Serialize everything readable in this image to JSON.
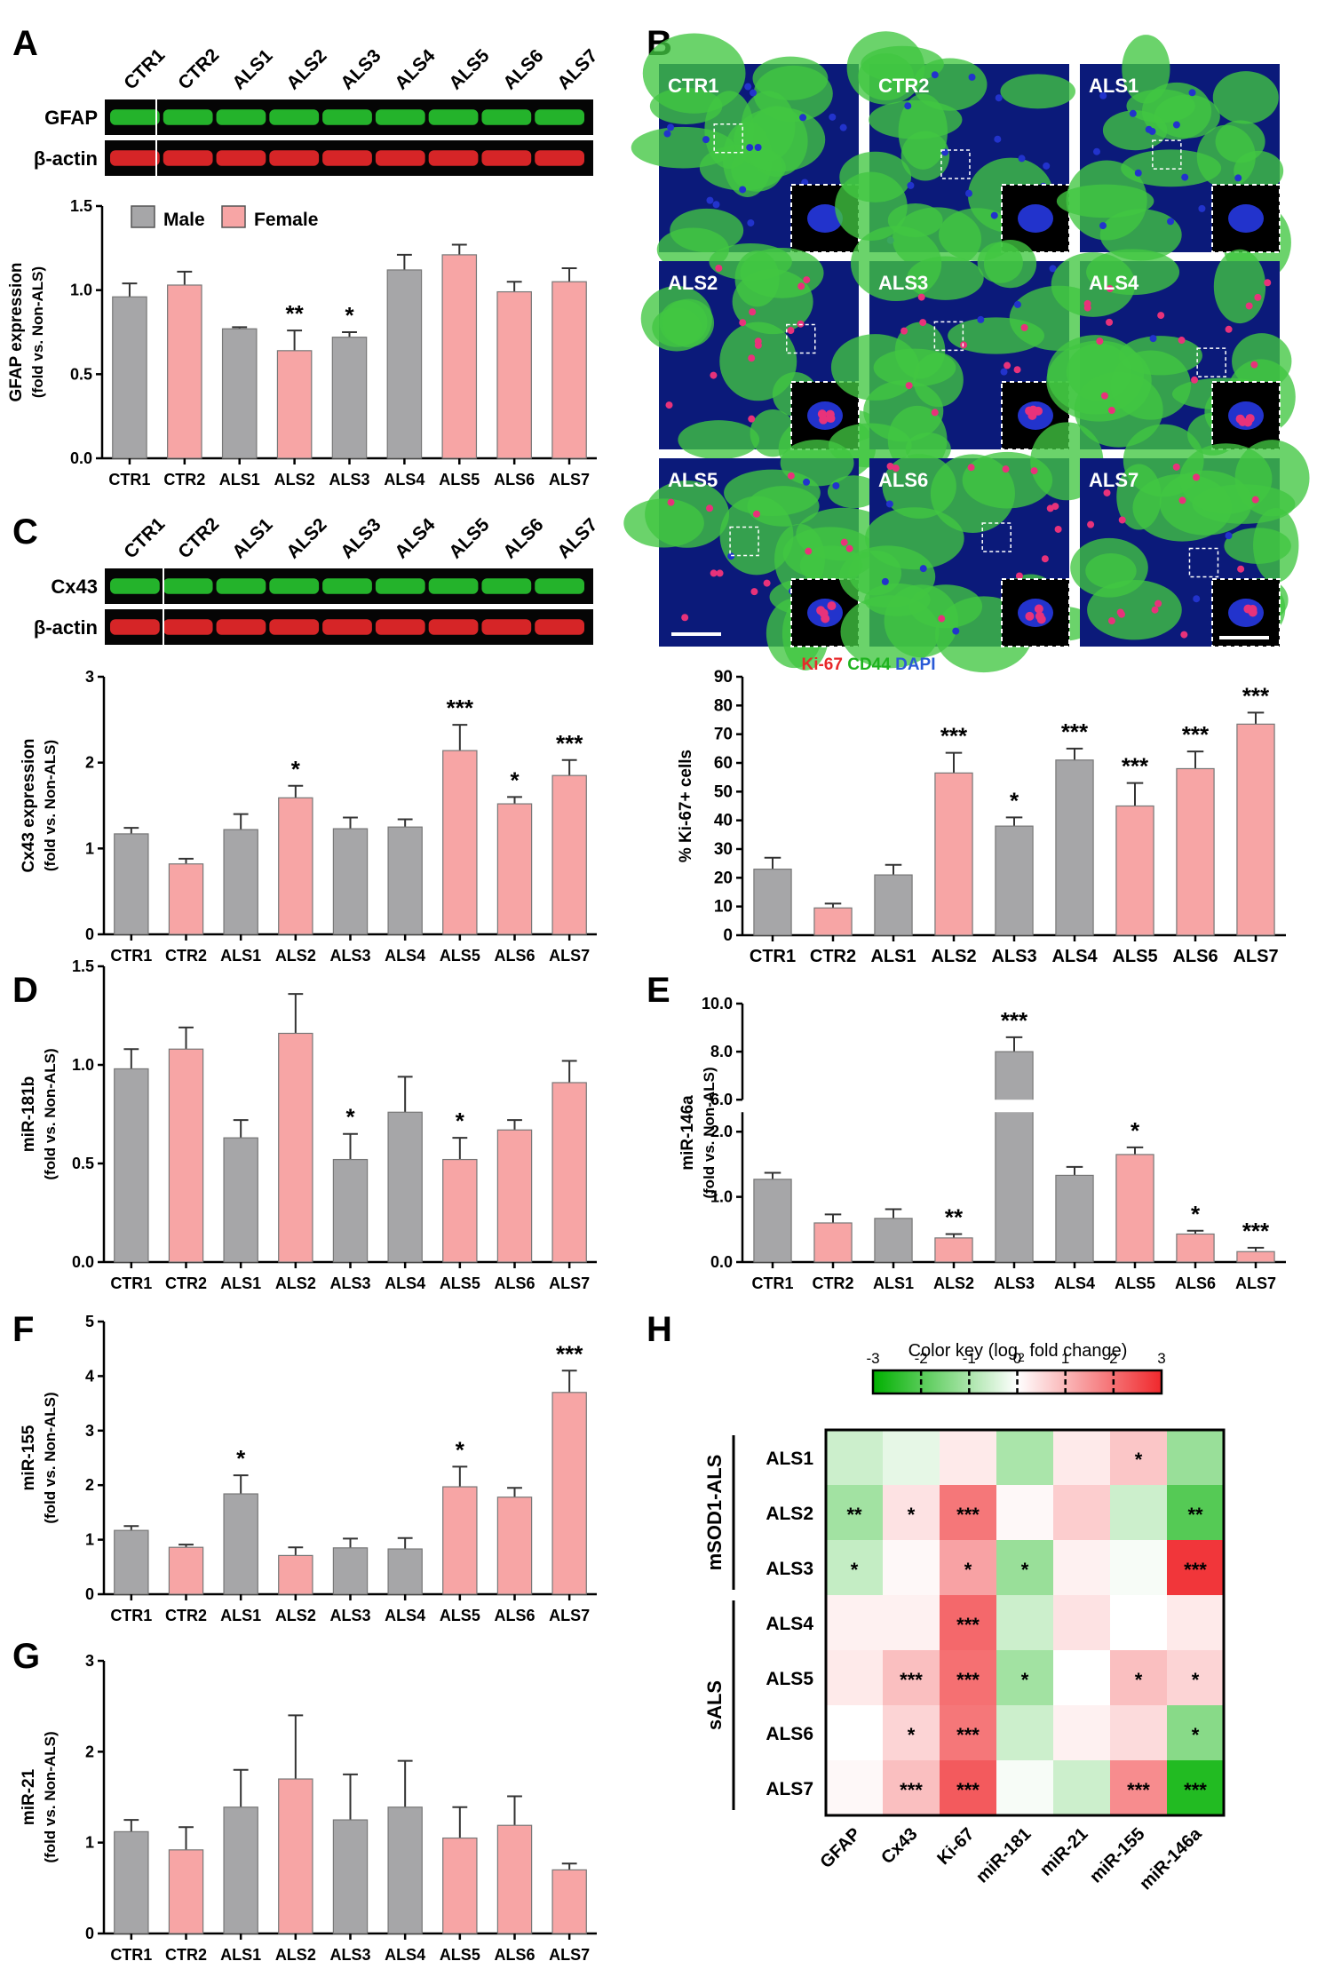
{
  "colors": {
    "male": "#a6a6a8",
    "female": "#f7a5a5",
    "blot_green": "#27c22f",
    "blot_red": "#e8282a",
    "dapi": "#2233cc",
    "ki67": "#e8327a",
    "cd44": "#41c741"
  },
  "samples": [
    "CTR1",
    "CTR2",
    "ALS1",
    "ALS2",
    "ALS3",
    "ALS4",
    "ALS5",
    "ALS6",
    "ALS7"
  ],
  "sex": [
    "male",
    "female",
    "male",
    "female",
    "male",
    "male",
    "female",
    "female",
    "female"
  ],
  "panelA": {
    "letter": "A",
    "blot_rows": [
      "GFAP",
      "β-actin"
    ]
  },
  "panelB": {
    "letter": "B",
    "stain_labels": [
      "Ki-67",
      "CD44",
      "DAPI"
    ]
  },
  "panelC": {
    "letter": "C",
    "blot_rows": [
      "Cx43",
      "β-actin"
    ]
  },
  "panelD": {
    "letter": "D"
  },
  "panelE": {
    "letter": "E"
  },
  "panelF": {
    "letter": "F"
  },
  "panelG": {
    "letter": "G"
  },
  "panelH": {
    "letter": "H"
  },
  "legend": {
    "male": "Male",
    "female": "Female"
  },
  "chart_data": [
    {
      "id": "A",
      "type": "bar",
      "categories": [
        "CTR1",
        "CTR2",
        "ALS1",
        "ALS2",
        "ALS3",
        "ALS4",
        "ALS5",
        "ALS6",
        "ALS7"
      ],
      "values": [
        0.96,
        1.03,
        0.77,
        0.64,
        0.72,
        1.12,
        1.21,
        0.99,
        1.05
      ],
      "errors": [
        0.08,
        0.08,
        0.01,
        0.12,
        0.03,
        0.09,
        0.06,
        0.06,
        0.08
      ],
      "sig": [
        "",
        "",
        "",
        "**",
        "*",
        "",
        "",
        "",
        ""
      ],
      "ylabel": "GFAP expression",
      "ylabel2": "(fold vs. Non-ALS)",
      "ylim": [
        0,
        1.5
      ],
      "ticks": [
        "0.0",
        "0.5",
        "1.0",
        "1.5"
      ]
    },
    {
      "id": "B",
      "type": "bar",
      "categories": [
        "CTR1",
        "CTR2",
        "ALS1",
        "ALS2",
        "ALS3",
        "ALS4",
        "ALS5",
        "ALS6",
        "ALS7"
      ],
      "values": [
        23,
        9.5,
        21,
        56.5,
        38,
        61,
        45,
        58,
        73.5
      ],
      "errors": [
        4,
        1.5,
        3.5,
        7,
        3,
        4,
        8,
        6,
        4
      ],
      "sig": [
        "",
        "",
        "",
        "***",
        "*",
        "***",
        "***",
        "***",
        "***"
      ],
      "ylabel": "% Ki-67+ cells",
      "ylim": [
        0,
        90
      ],
      "ticks": [
        "0",
        "10",
        "20",
        "30",
        "40",
        "50",
        "60",
        "70",
        "80",
        "90"
      ]
    },
    {
      "id": "C",
      "type": "bar",
      "categories": [
        "CTR1",
        "CTR2",
        "ALS1",
        "ALS2",
        "ALS3",
        "ALS4",
        "ALS5",
        "ALS6",
        "ALS7"
      ],
      "values": [
        1.17,
        0.82,
        1.22,
        1.59,
        1.23,
        1.25,
        2.14,
        1.52,
        1.85
      ],
      "errors": [
        0.07,
        0.06,
        0.18,
        0.14,
        0.13,
        0.09,
        0.3,
        0.08,
        0.18
      ],
      "sig": [
        "",
        "",
        "",
        "*",
        "",
        "",
        "***",
        "*",
        "***"
      ],
      "ylabel": "Cx43 expression",
      "ylabel2": "(fold vs. Non-ALS)",
      "ylim": [
        0,
        3
      ],
      "ticks": [
        "0",
        "1",
        "2",
        "3"
      ]
    },
    {
      "id": "D",
      "type": "bar",
      "categories": [
        "CTR1",
        "CTR2",
        "ALS1",
        "ALS2",
        "ALS3",
        "ALS4",
        "ALS5",
        "ALS6",
        "ALS7"
      ],
      "values": [
        0.98,
        1.08,
        0.63,
        1.16,
        0.52,
        0.76,
        0.52,
        0.67,
        0.91
      ],
      "errors": [
        0.1,
        0.11,
        0.09,
        0.2,
        0.13,
        0.18,
        0.11,
        0.05,
        0.11
      ],
      "sig": [
        "",
        "",
        "",
        "",
        "*",
        "",
        "*",
        "",
        ""
      ],
      "ylabel": "miR-181b",
      "ylabel2": "(fold vs. Non-ALS)",
      "ylim": [
        0,
        1.5
      ],
      "ticks": [
        "0.0",
        "0.5",
        "1.0",
        "1.5"
      ]
    },
    {
      "id": "E",
      "type": "bar",
      "categories": [
        "CTR1",
        "CTR2",
        "ALS1",
        "ALS2",
        "ALS3",
        "ALS4",
        "ALS5",
        "ALS6",
        "ALS7"
      ],
      "values": [
        1.27,
        0.6,
        0.67,
        0.37,
        8.0,
        1.33,
        1.65,
        0.43,
        0.16
      ],
      "errors": [
        0.1,
        0.13,
        0.14,
        0.06,
        0.6,
        0.13,
        0.11,
        0.05,
        0.06
      ],
      "sig": [
        "",
        "",
        "",
        "**",
        "***",
        "",
        "*",
        "*",
        "***"
      ],
      "ylabel": "miR-146a",
      "ylabel2": "(fold vs. Non-ALS)",
      "ylim": [
        0,
        10
      ],
      "axis_break": [
        2.3,
        6.0
      ],
      "ticks": [
        "0.0",
        "1.0",
        "2.0",
        "6.0",
        "8.0",
        "10.0"
      ]
    },
    {
      "id": "F",
      "type": "bar",
      "categories": [
        "CTR1",
        "CTR2",
        "ALS1",
        "ALS2",
        "ALS3",
        "ALS4",
        "ALS5",
        "ALS6",
        "ALS7"
      ],
      "values": [
        1.17,
        0.86,
        1.84,
        0.71,
        0.85,
        0.83,
        1.97,
        1.78,
        3.7
      ],
      "errors": [
        0.08,
        0.05,
        0.34,
        0.15,
        0.17,
        0.2,
        0.37,
        0.17,
        0.4
      ],
      "sig": [
        "",
        "",
        "*",
        "",
        "",
        "",
        "*",
        "",
        "***"
      ],
      "ylabel": "miR-155",
      "ylabel2": "(fold vs. Non-ALS)",
      "ylim": [
        0,
        5
      ],
      "ticks": [
        "0",
        "1",
        "2",
        "3",
        "4",
        "5"
      ]
    },
    {
      "id": "G",
      "type": "bar",
      "categories": [
        "CTR1",
        "CTR2",
        "ALS1",
        "ALS2",
        "ALS3",
        "ALS4",
        "ALS5",
        "ALS6",
        "ALS7"
      ],
      "values": [
        1.12,
        0.92,
        1.39,
        1.7,
        1.25,
        1.39,
        1.05,
        1.19,
        0.7
      ],
      "errors": [
        0.13,
        0.25,
        0.41,
        0.7,
        0.5,
        0.51,
        0.34,
        0.32,
        0.07
      ],
      "sig": [
        "",
        "",
        "",
        "",
        "",
        "",
        "",
        "",
        ""
      ],
      "ylabel": "miR-21",
      "ylabel2": "(fold vs. Non-ALS)",
      "ylim": [
        0,
        3
      ],
      "ticks": [
        "0",
        "1",
        "2",
        "3"
      ]
    },
    {
      "id": "H",
      "type": "heatmap",
      "title": "Color key (log",
      "title_sub": "2",
      "title_end": " fold change)",
      "key_ticks": [
        "-3",
        "-2",
        "-1",
        "0",
        "1",
        "2",
        "3"
      ],
      "rows": [
        "ALS1",
        "ALS2",
        "ALS3",
        "ALS4",
        "ALS5",
        "ALS6",
        "ALS7"
      ],
      "cols": [
        "GFAP",
        "Cx43",
        "Ki-67",
        "miR-181",
        "miR-21",
        "miR-155",
        "miR-146a"
      ],
      "groups": [
        {
          "label": "mSOD1-ALS",
          "rows": [
            0,
            2
          ]
        },
        {
          "label": "sALS",
          "rows": [
            3,
            6
          ]
        }
      ],
      "values": [
        [
          -0.6,
          -0.3,
          0.3,
          -1.0,
          0.3,
          0.8,
          -1.2
        ],
        [
          -1.1,
          0.4,
          1.9,
          0.1,
          0.7,
          -0.6,
          -2.0
        ],
        [
          -0.7,
          0.1,
          1.3,
          -1.2,
          0.2,
          -0.1,
          2.8
        ],
        [
          0.2,
          0.2,
          2.1,
          -0.6,
          0.4,
          0.0,
          0.3
        ],
        [
          0.3,
          0.9,
          2.0,
          -1.1,
          0.0,
          0.9,
          0.6
        ],
        [
          0.0,
          0.6,
          1.9,
          -0.6,
          0.2,
          0.5,
          -1.4
        ],
        [
          0.1,
          0.9,
          2.3,
          -0.1,
          -0.6,
          1.6,
          -2.6
        ]
      ],
      "sig": [
        [
          "",
          "",
          "",
          "",
          "",
          "*",
          ""
        ],
        [
          "**",
          "*",
          "***",
          "",
          "",
          "",
          "**"
        ],
        [
          "*",
          "",
          "*",
          "*",
          "",
          "",
          "***"
        ],
        [
          "",
          "",
          "***",
          "",
          "",
          "",
          ""
        ],
        [
          "",
          "***",
          "***",
          "*",
          "",
          "*",
          "*"
        ],
        [
          "",
          "*",
          "***",
          "",
          "",
          "",
          "*"
        ],
        [
          "",
          "***",
          "***",
          "",
          "",
          "***",
          "***"
        ]
      ]
    }
  ]
}
